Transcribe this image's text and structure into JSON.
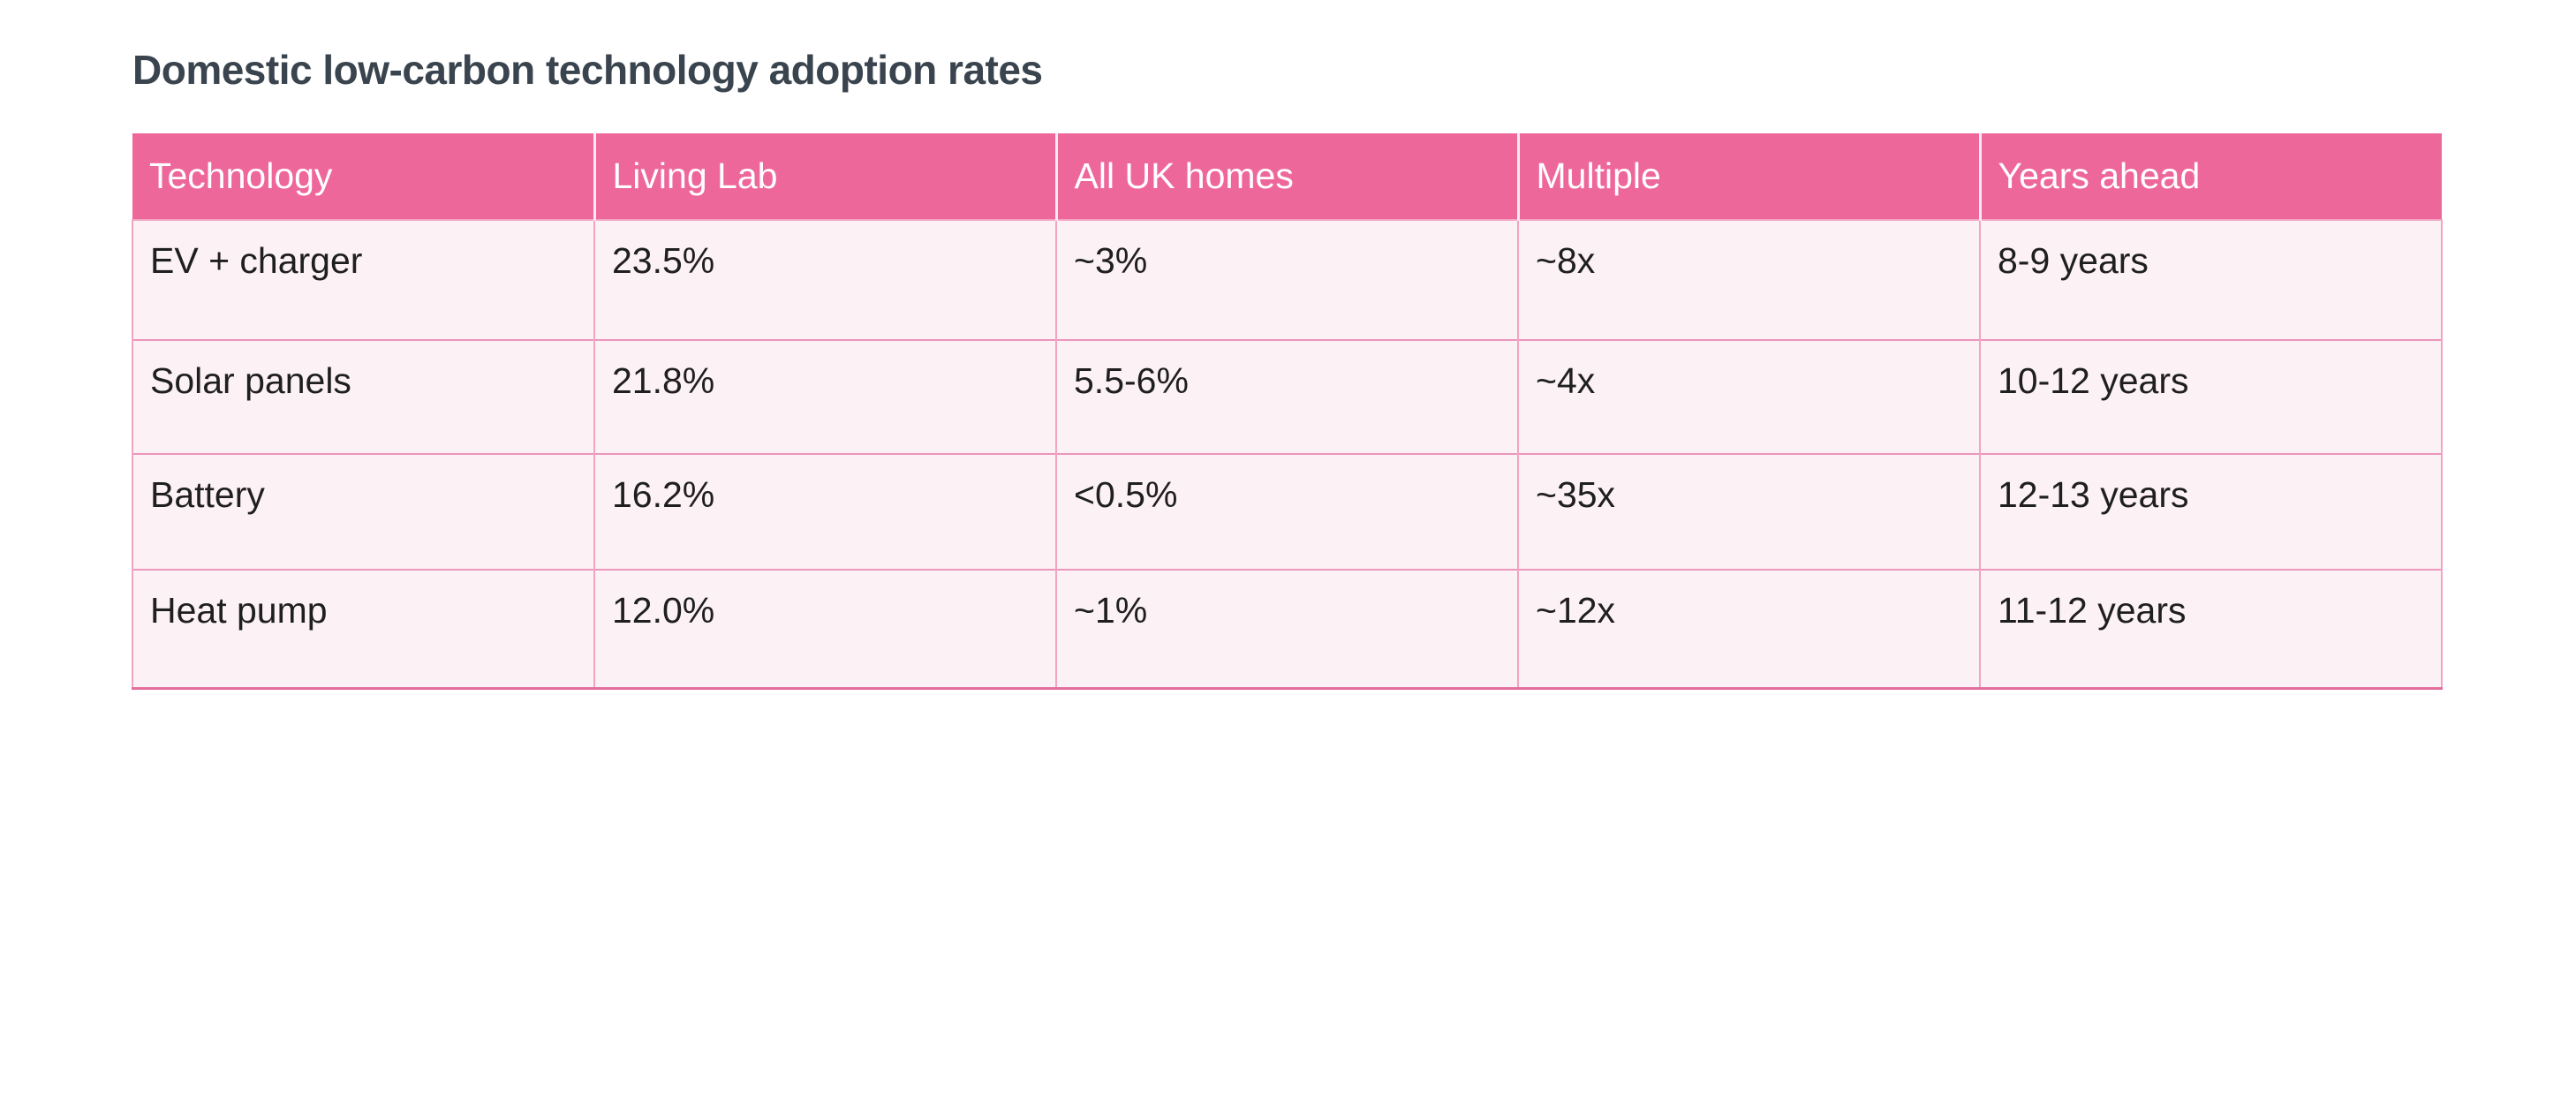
{
  "title": "Domestic low-carbon technology adoption rates",
  "table": {
    "columns": [
      "Technology",
      "Living Lab",
      "All UK homes",
      "Multiple",
      "Years ahead"
    ],
    "rows": [
      {
        "cells": [
          "EV + charger",
          "23.5%",
          "~3%",
          "~8x",
          "8-9 years"
        ]
      },
      {
        "cells": [
          "Solar panels",
          "21.8%",
          "5.5-6%",
          "~4x",
          "10-12 years"
        ]
      },
      {
        "cells": [
          "Battery",
          "16.2%",
          "<0.5%",
          "~35x",
          "12-13 years"
        ]
      },
      {
        "cells": [
          "Heat pump",
          "12.0%",
          "~1%",
          "~12x",
          "11-12 years"
        ]
      }
    ]
  },
  "colors": {
    "header_bg": "#ee679b",
    "header_text": "#ffffff",
    "row_bg": "#fcf1f5",
    "divider_vertical": "#f1a5c3",
    "divider_horizontal": "#eb96ba",
    "outer_border": "#e36d9d",
    "header_divider": "#fbe9f0",
    "title_color": "#3a444e",
    "cell_text": "#1f1f1f",
    "page_bg": "#ffffff"
  }
}
